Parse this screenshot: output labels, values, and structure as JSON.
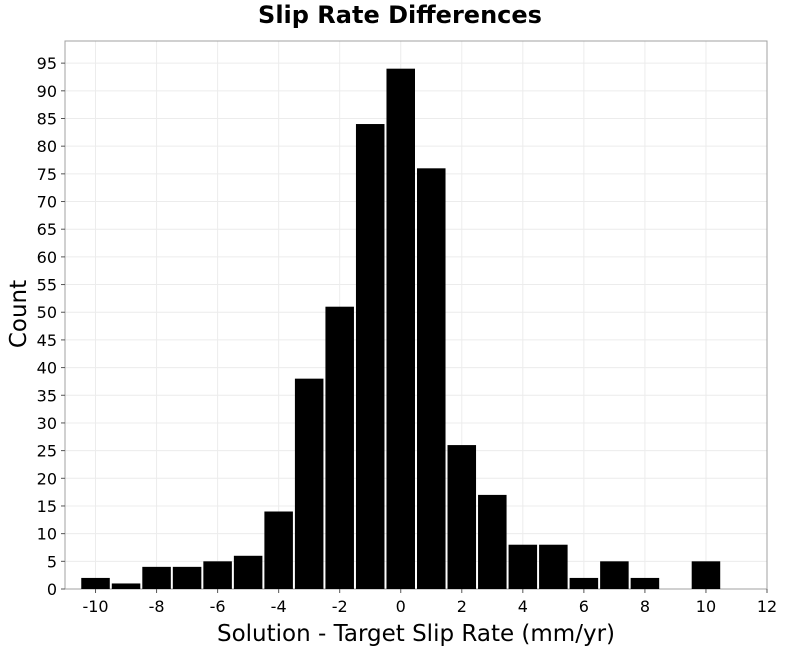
{
  "chart_data": {
    "type": "bar",
    "title": "Slip Rate Differences",
    "xlabel": "Solution - Target Slip Rate (mm/yr)",
    "ylabel": "Count",
    "xlim": [
      -11,
      12
    ],
    "ylim": [
      0,
      99
    ],
    "bin_width": 1,
    "x_ticks": [
      -10,
      -8,
      -6,
      -4,
      -2,
      0,
      2,
      4,
      6,
      8,
      10,
      12
    ],
    "y_ticks": [
      0,
      5,
      10,
      15,
      20,
      25,
      30,
      35,
      40,
      45,
      50,
      55,
      60,
      65,
      70,
      75,
      80,
      85,
      90,
      95
    ],
    "grid": true,
    "bar_color": "#000000",
    "bins": [
      {
        "x": -10,
        "count": 2
      },
      {
        "x": -9,
        "count": 1
      },
      {
        "x": -8,
        "count": 4
      },
      {
        "x": -7,
        "count": 4
      },
      {
        "x": -6,
        "count": 5
      },
      {
        "x": -5,
        "count": 6
      },
      {
        "x": -4,
        "count": 14
      },
      {
        "x": -3,
        "count": 38
      },
      {
        "x": -2,
        "count": 51
      },
      {
        "x": -1,
        "count": 84
      },
      {
        "x": 0,
        "count": 94
      },
      {
        "x": 1,
        "count": 76
      },
      {
        "x": 2,
        "count": 26
      },
      {
        "x": 3,
        "count": 17
      },
      {
        "x": 4,
        "count": 8
      },
      {
        "x": 5,
        "count": 8
      },
      {
        "x": 6,
        "count": 2
      },
      {
        "x": 7,
        "count": 5
      },
      {
        "x": 8,
        "count": 2
      },
      {
        "x": 10,
        "count": 5
      }
    ]
  }
}
